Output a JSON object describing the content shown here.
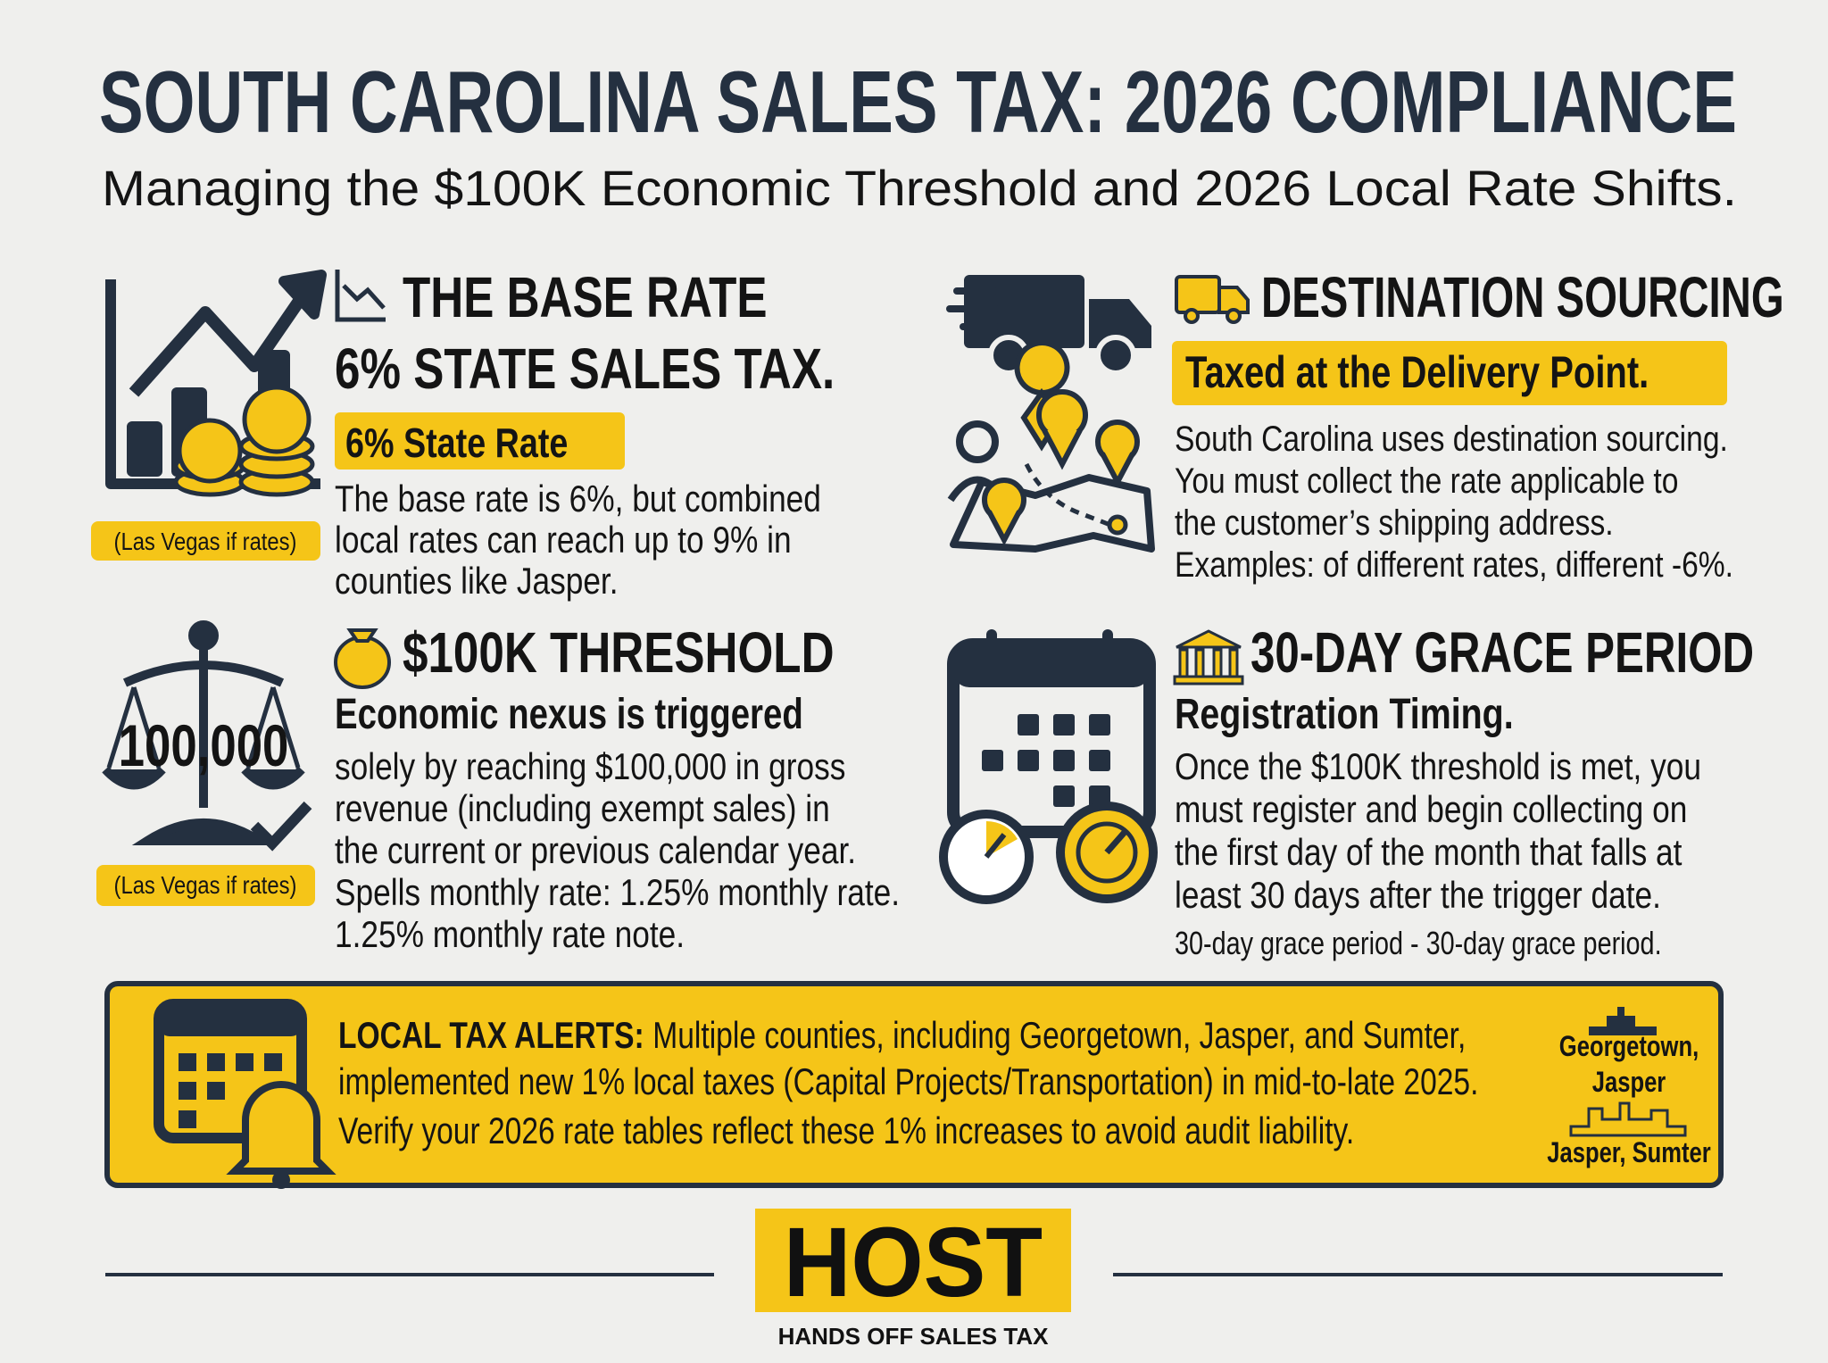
{
  "header": {
    "title": "SOUTH CAROLINA SALES TAX: 2026 COMPLIANCE",
    "subtitle": "Managing the $100K Economic Threshold and 2026 Local Rate Shifts."
  },
  "sections": [
    {
      "heading": "THE BASE RATE",
      "subheading": "6% STATE SALES TAX.",
      "highlight": "6% State Rate",
      "body": [
        "The base rate is 6%, but combined",
        "local rates can reach up to 9% in",
        "counties like Jasper."
      ],
      "icon_label": "(Las Vegas if rates)"
    },
    {
      "heading": "DESTINATION SOURCING",
      "highlight": "Taxed at the Delivery Point.",
      "body": [
        "South Carolina uses destination sourcing.",
        "You must collect the rate applicable to",
        "the customer’s shipping address.",
        "Examples: of different rates, different -6%."
      ]
    },
    {
      "heading": "$100K THRESHOLD",
      "subheading": "Economic nexus is triggered",
      "icon_text": "100,000",
      "icon_label": "(Las Vegas if rates)",
      "body": [
        "solely by reaching $100,000 in gross",
        "revenue (including exempt sales) in",
        "the current or previous calendar year.",
        "Spells monthly rate: 1.25% monthly rate.",
        "1.25% monthly rate note."
      ]
    },
    {
      "heading": "30-DAY GRACE PERIOD",
      "subheading": "Registration Timing.",
      "body": [
        "Once the $100K threshold is met, you",
        "must register and begin collecting on",
        "the first day of the month that falls at",
        "least 30 days after the trigger date.",
        "30-day grace period - 30-day grace period."
      ]
    }
  ],
  "alert": {
    "label": "LOCAL TAX ALERTS:",
    "lines": [
      "Multiple counties, including Georgetown, Jasper, and Sumter,",
      "implemented new 1% local taxes (Capital Projects/Transportation) in mid-to-late 2025.",
      "Verify your 2026 rate tables reflect these 1% increases to avoid audit liability."
    ],
    "places": [
      "Georgetown,",
      "Jasper",
      "Jasper, Sumter"
    ]
  },
  "footer": {
    "logo": "HOST",
    "tagline": "HANDS OFF SALES TAX"
  }
}
